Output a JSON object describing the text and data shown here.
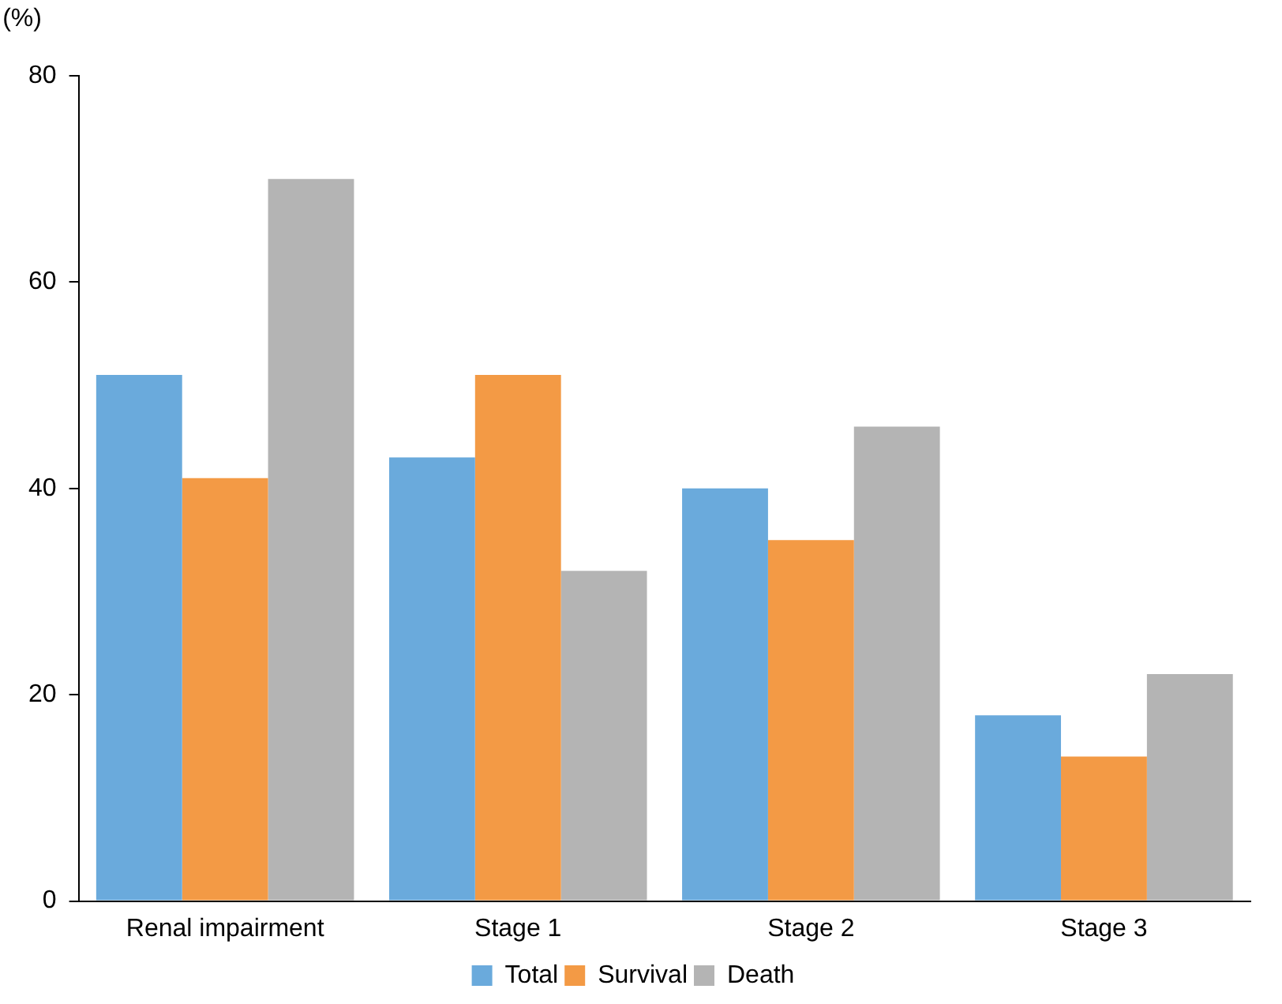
{
  "chart_data": {
    "type": "bar",
    "ylabel": "(%)",
    "categories": [
      "Renal impairment",
      "Stage 1",
      "Stage 2",
      "Stage 3"
    ],
    "series": [
      {
        "name": "Total",
        "color": "#6aaadc",
        "values": [
          51,
          43,
          40,
          18
        ]
      },
      {
        "name": "Survival",
        "color": "#f39a45",
        "values": [
          41,
          51,
          35,
          14
        ]
      },
      {
        "name": "Death",
        "color": "#b4b4b4",
        "values": [
          70,
          32,
          46,
          22
        ]
      }
    ],
    "ylim": [
      0,
      80
    ],
    "yticks": [
      0,
      20,
      40,
      60,
      80
    ],
    "grid": false,
    "legend": "bottom"
  }
}
